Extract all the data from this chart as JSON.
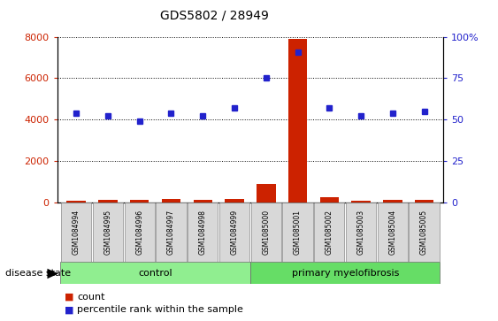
{
  "title": "GDS5802 / 28949",
  "samples": [
    "GSM1084994",
    "GSM1084995",
    "GSM1084996",
    "GSM1084997",
    "GSM1084998",
    "GSM1084999",
    "GSM1085000",
    "GSM1085001",
    "GSM1085002",
    "GSM1085003",
    "GSM1085004",
    "GSM1085005"
  ],
  "count_values": [
    80,
    110,
    120,
    160,
    100,
    150,
    900,
    7900,
    230,
    60,
    100,
    130
  ],
  "percentile_values": [
    54,
    52,
    49,
    54,
    52,
    57,
    75,
    91,
    57,
    52,
    54,
    55
  ],
  "ylim_left": [
    0,
    8000
  ],
  "ylim_right": [
    0,
    100
  ],
  "yticks_left": [
    0,
    2000,
    4000,
    6000,
    8000
  ],
  "yticks_right": [
    0,
    25,
    50,
    75,
    100
  ],
  "bar_color": "#cc2200",
  "dot_color": "#2222cc",
  "control_color": "#90ee90",
  "myelofibrosis_color": "#66dd66",
  "legend_count": "count",
  "legend_percentile": "percentile rank within the sample",
  "control_group_label": "control",
  "myelofibrosis_group_label": "primary myelofibrosis",
  "disease_state_label": "disease state",
  "n_control": 6,
  "n_myelofibrosis": 6
}
